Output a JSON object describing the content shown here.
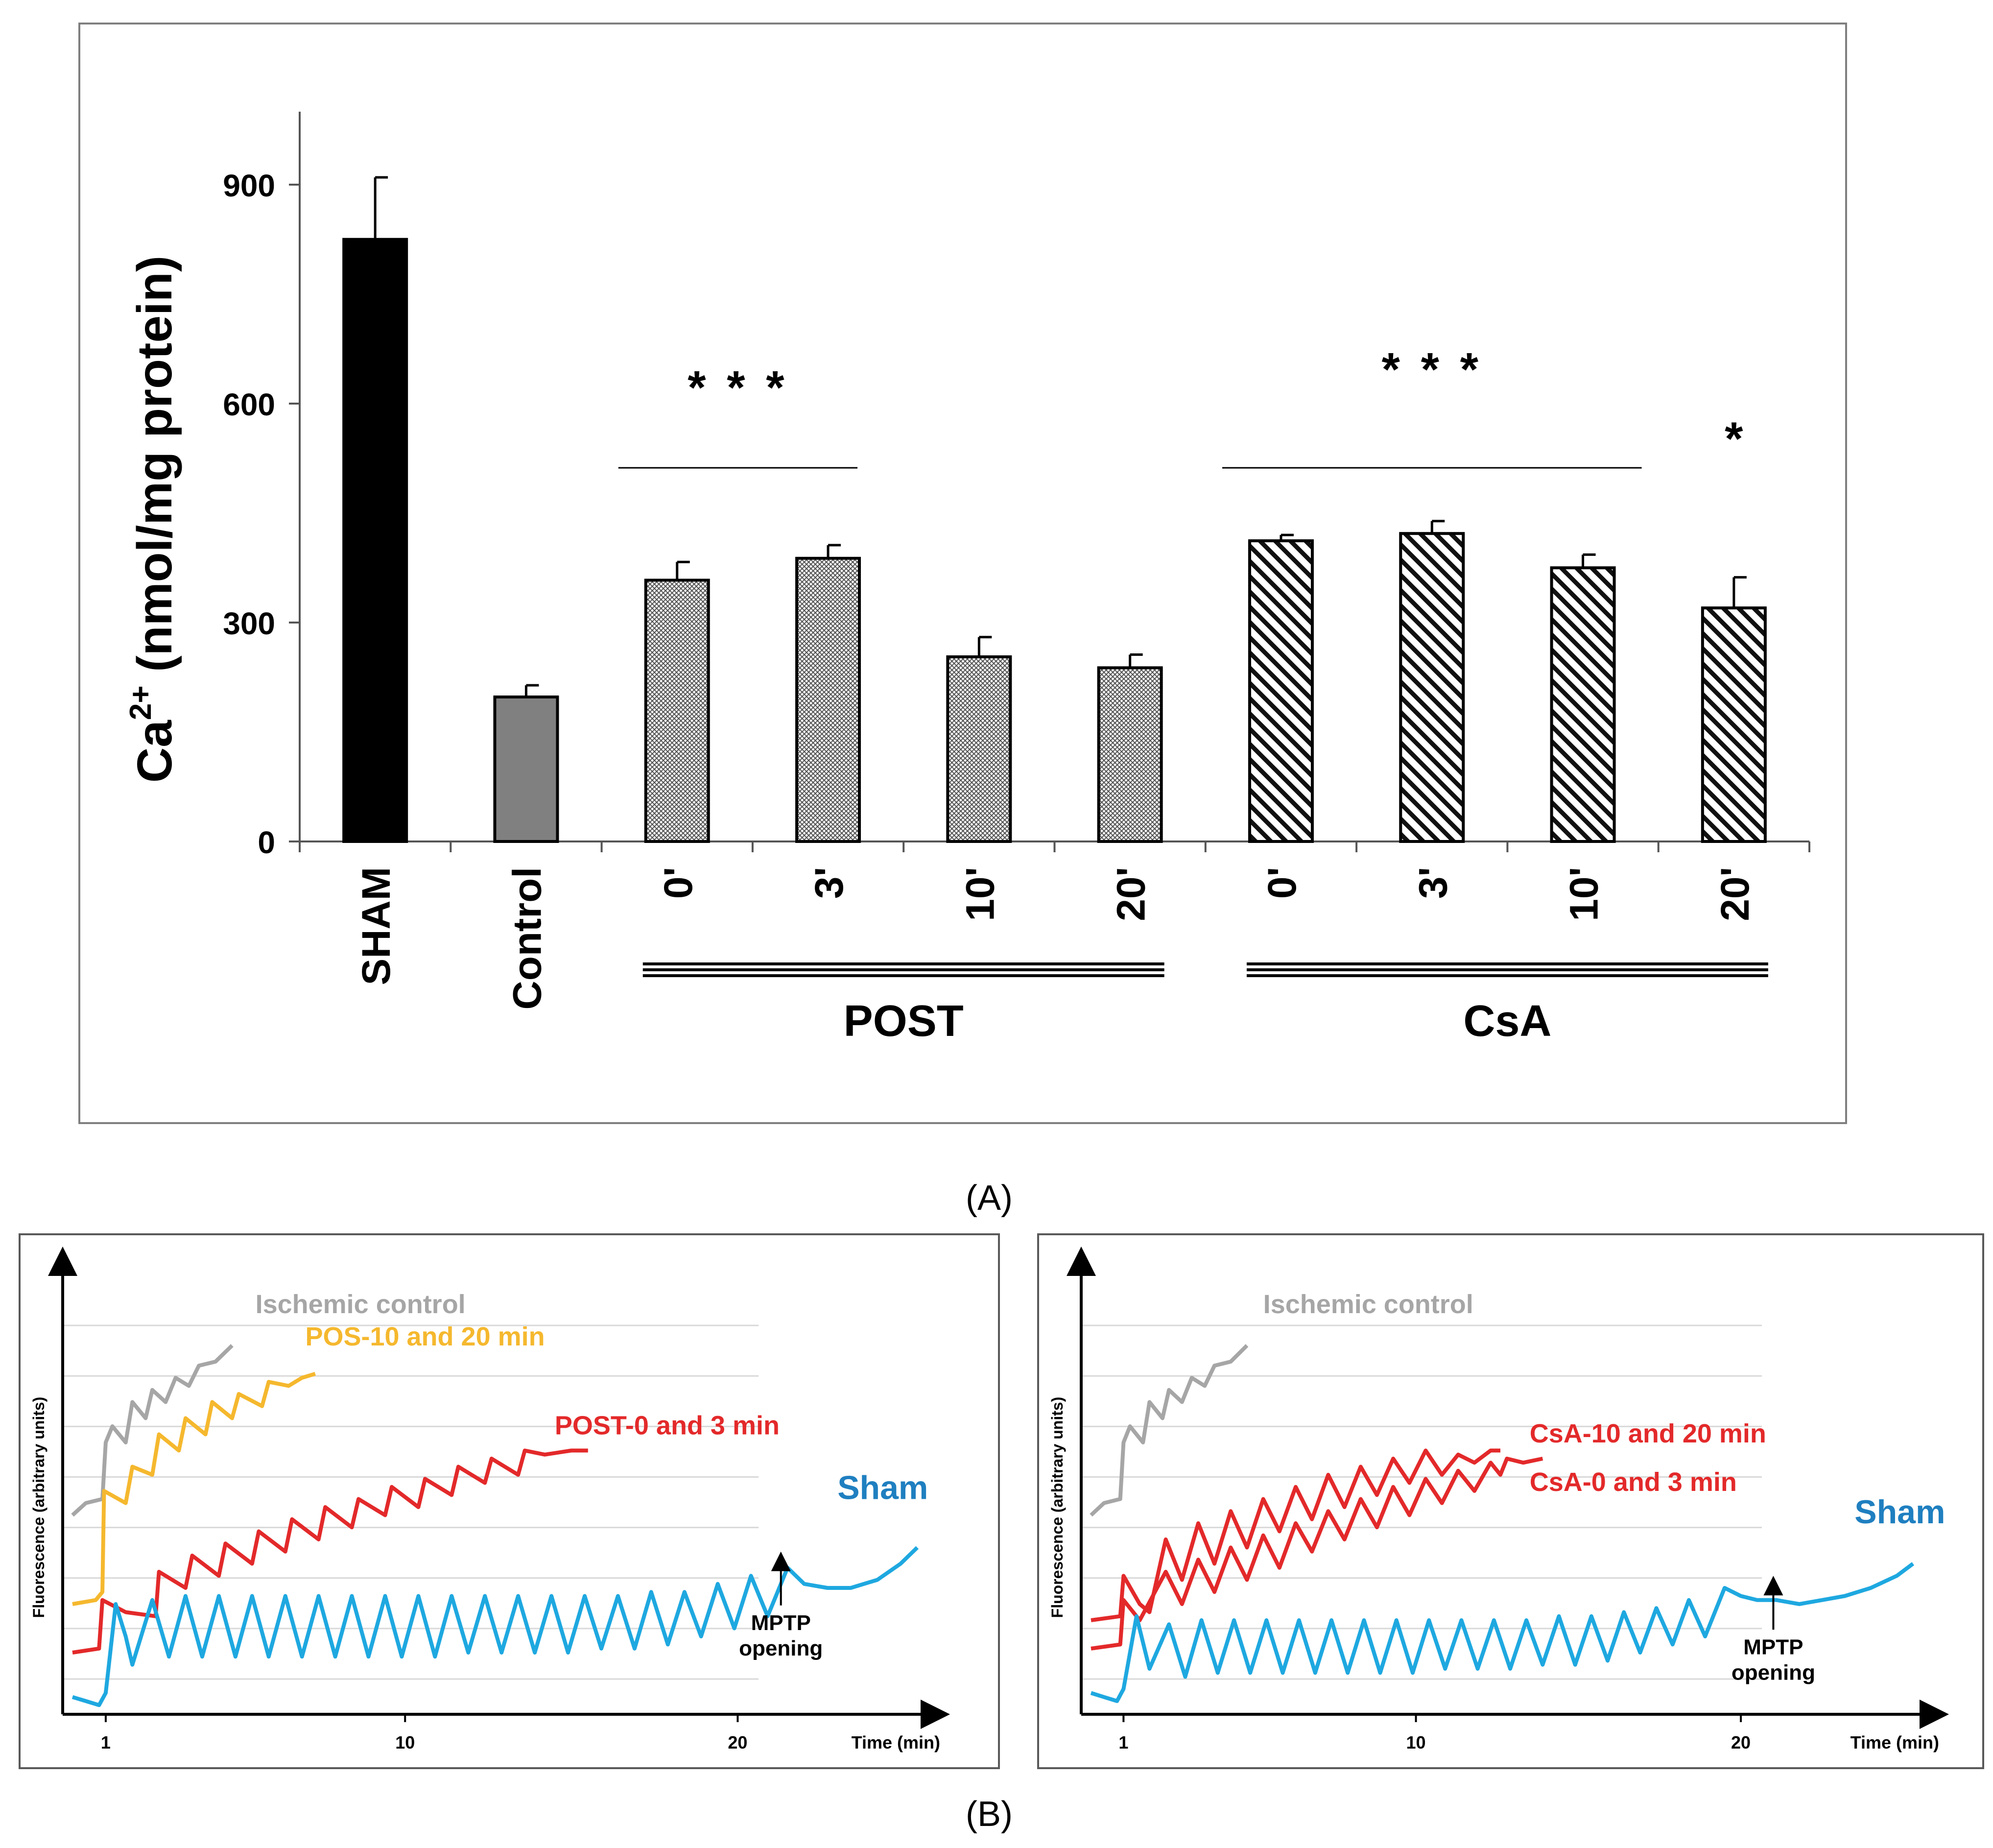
{
  "chart_data": [
    {
      "panel": "A",
      "type": "bar",
      "ylabel_main": "Ca",
      "ylabel_sup": "2+",
      "ylabel_rest": " (nmol/mg protein)",
      "ylim": [
        0,
        1000
      ],
      "yticks": [
        0,
        300,
        600,
        900
      ],
      "categories": [
        "SHAM",
        "Control",
        "0'",
        "3'",
        "10'",
        "20'",
        "0'",
        "3'",
        "10'",
        "20'"
      ],
      "values": [
        825,
        198,
        358,
        388,
        253,
        238,
        412,
        422,
        375,
        320
      ],
      "errors": [
        85,
        16,
        25,
        18,
        27,
        18,
        8,
        17,
        18,
        42
      ],
      "fills": [
        "solid-black",
        "solid-gray",
        "crosshatch",
        "crosshatch",
        "crosshatch",
        "crosshatch",
        "diagonal",
        "diagonal",
        "diagonal",
        "diagonal"
      ],
      "groups": [
        {
          "label": "POST",
          "from": 2,
          "to": 5
        },
        {
          "label": "CsA",
          "from": 6,
          "to": 9
        }
      ],
      "significance": [
        {
          "text": "* * *",
          "from": 2,
          "to": 3,
          "y": 600,
          "line_y": 512
        },
        {
          "text": "* * *",
          "from": 6,
          "to": 8,
          "y": 625,
          "line_y": 512
        },
        {
          "text": "*",
          "at": 9,
          "y": 530
        }
      ],
      "caption": "(A)"
    },
    {
      "panel": "B-left",
      "type": "line",
      "ylabel": "Fluorescence (arbitrary units)",
      "xlabel": "Time (min)",
      "xticks": [
        1,
        10,
        20
      ],
      "xlim": [
        0,
        25.5
      ],
      "ylim": [
        0,
        100
      ],
      "annotation": {
        "line1": "MPTP",
        "line2": "opening",
        "x": 21.3,
        "y": 33
      },
      "series": [
        {
          "name": "Ischemic control",
          "color": "#a6a6a6",
          "label_x": 5.5,
          "label_y": 92,
          "points": [
            [
              0,
              42
            ],
            [
              0.4,
              45
            ],
            [
              0.9,
              46
            ],
            [
              1.0,
              60
            ],
            [
              1.2,
              64
            ],
            [
              1.6,
              60
            ],
            [
              1.8,
              70
            ],
            [
              2.2,
              66
            ],
            [
              2.4,
              73
            ],
            [
              2.8,
              70
            ],
            [
              3.1,
              76
            ],
            [
              3.5,
              74
            ],
            [
              3.8,
              79
            ],
            [
              4.3,
              80
            ],
            [
              4.8,
              84
            ]
          ]
        },
        {
          "name": "POS-10 and 20 min",
          "color": "#f5b82e",
          "label_x": 7.0,
          "label_y": 84,
          "points": [
            [
              0,
              20
            ],
            [
              0.7,
              21
            ],
            [
              0.9,
              23
            ],
            [
              0.95,
              48
            ],
            [
              1.6,
              45
            ],
            [
              1.8,
              54
            ],
            [
              2.4,
              52
            ],
            [
              2.6,
              62
            ],
            [
              3.2,
              58
            ],
            [
              3.4,
              66
            ],
            [
              4.0,
              62
            ],
            [
              4.2,
              70
            ],
            [
              4.8,
              66
            ],
            [
              5.0,
              72
            ],
            [
              5.7,
              69
            ],
            [
              5.9,
              75
            ],
            [
              6.5,
              74
            ],
            [
              6.9,
              76
            ],
            [
              7.3,
              77
            ]
          ]
        },
        {
          "name": "POST-0 and 3 min",
          "color": "#e3292a",
          "label_x": 14.5,
          "label_y": 62,
          "points": [
            [
              0,
              8
            ],
            [
              0.8,
              9
            ],
            [
              0.9,
              21
            ],
            [
              1.6,
              18
            ],
            [
              2.5,
              17
            ],
            [
              2.6,
              28
            ],
            [
              3.4,
              24
            ],
            [
              3.6,
              32
            ],
            [
              4.4,
              27
            ],
            [
              4.6,
              35
            ],
            [
              5.4,
              30
            ],
            [
              5.6,
              38
            ],
            [
              6.4,
              33
            ],
            [
              6.6,
              41
            ],
            [
              7.4,
              36
            ],
            [
              7.6,
              44
            ],
            [
              8.4,
              39
            ],
            [
              8.6,
              46
            ],
            [
              9.4,
              42
            ],
            [
              9.6,
              49
            ],
            [
              10.4,
              44
            ],
            [
              10.6,
              51
            ],
            [
              11.4,
              47
            ],
            [
              11.6,
              54
            ],
            [
              12.4,
              50
            ],
            [
              12.6,
              56
            ],
            [
              13.4,
              52
            ],
            [
              13.6,
              58
            ],
            [
              14.2,
              57
            ],
            [
              15.0,
              58
            ],
            [
              15.5,
              58
            ]
          ]
        },
        {
          "name": "Sham",
          "color": "#1ea8e0",
          "label_x": 23.0,
          "label_y": 46,
          "points": [
            [
              0,
              -3
            ],
            [
              0.4,
              -4
            ],
            [
              0.8,
              -5
            ],
            [
              1.0,
              -2
            ],
            [
              1.3,
              20
            ],
            [
              1.6,
              12
            ],
            [
              1.8,
              5
            ],
            [
              2.4,
              21
            ],
            [
              2.9,
              7
            ],
            [
              3.4,
              22
            ],
            [
              3.9,
              7
            ],
            [
              4.4,
              22
            ],
            [
              4.9,
              7
            ],
            [
              5.4,
              22
            ],
            [
              5.9,
              7
            ],
            [
              6.4,
              22
            ],
            [
              6.9,
              7
            ],
            [
              7.4,
              22
            ],
            [
              7.9,
              7
            ],
            [
              8.4,
              22
            ],
            [
              8.9,
              7
            ],
            [
              9.4,
              22
            ],
            [
              9.9,
              7
            ],
            [
              10.4,
              22
            ],
            [
              10.9,
              7
            ],
            [
              11.4,
              22
            ],
            [
              11.9,
              8
            ],
            [
              12.4,
              22
            ],
            [
              12.9,
              8
            ],
            [
              13.4,
              22
            ],
            [
              13.9,
              8
            ],
            [
              14.4,
              22
            ],
            [
              14.9,
              8
            ],
            [
              15.4,
              22
            ],
            [
              15.9,
              9
            ],
            [
              16.4,
              22
            ],
            [
              16.9,
              9
            ],
            [
              17.4,
              23
            ],
            [
              17.9,
              10
            ],
            [
              18.4,
              23
            ],
            [
              18.9,
              12
            ],
            [
              19.4,
              25
            ],
            [
              19.9,
              14
            ],
            [
              20.4,
              27
            ],
            [
              20.9,
              17
            ],
            [
              21.5,
              29
            ],
            [
              22.0,
              25
            ],
            [
              22.7,
              24
            ],
            [
              23.4,
              24
            ],
            [
              24.2,
              26
            ],
            [
              24.9,
              30
            ],
            [
              25.4,
              34
            ]
          ]
        }
      ]
    },
    {
      "panel": "B-right",
      "type": "line",
      "ylabel": "Fluorescence (arbitrary units)",
      "xlabel": "Time (min)",
      "xticks": [
        1,
        10,
        20
      ],
      "xlim": [
        0,
        25.5
      ],
      "ylim": [
        0,
        100
      ],
      "annotation": {
        "line1": "MPTP",
        "line2": "opening",
        "x": 21.0,
        "y": 27
      },
      "series": [
        {
          "name": "Ischemic control",
          "color": "#a6a6a6",
          "label_x": 5.3,
          "label_y": 92,
          "points": [
            [
              0,
              42
            ],
            [
              0.4,
              45
            ],
            [
              0.9,
              46
            ],
            [
              1.0,
              60
            ],
            [
              1.2,
              64
            ],
            [
              1.6,
              60
            ],
            [
              1.8,
              70
            ],
            [
              2.2,
              66
            ],
            [
              2.4,
              73
            ],
            [
              2.8,
              70
            ],
            [
              3.1,
              76
            ],
            [
              3.5,
              74
            ],
            [
              3.8,
              79
            ],
            [
              4.3,
              80
            ],
            [
              4.8,
              84
            ]
          ]
        },
        {
          "name": "CsA-10 and 20 min",
          "color": "#e3292a",
          "label_x": 13.5,
          "label_y": 60,
          "points": [
            [
              0,
              16
            ],
            [
              0.9,
              17
            ],
            [
              1.0,
              27
            ],
            [
              1.5,
              20
            ],
            [
              1.8,
              18
            ],
            [
              2.3,
              36
            ],
            [
              2.8,
              26
            ],
            [
              3.3,
              40
            ],
            [
              3.8,
              30
            ],
            [
              4.3,
              43
            ],
            [
              4.8,
              34
            ],
            [
              5.3,
              46
            ],
            [
              5.8,
              38
            ],
            [
              6.3,
              49
            ],
            [
              6.8,
              41
            ],
            [
              7.3,
              52
            ],
            [
              7.8,
              44
            ],
            [
              8.3,
              54
            ],
            [
              8.8,
              47
            ],
            [
              9.3,
              56
            ],
            [
              9.8,
              50
            ],
            [
              10.3,
              58
            ],
            [
              10.8,
              52
            ],
            [
              11.3,
              57
            ],
            [
              11.8,
              55
            ],
            [
              12.3,
              58
            ],
            [
              12.6,
              58
            ]
          ]
        },
        {
          "name": "CsA-0 and 3 min",
          "color": "#e3292a",
          "label_x": 13.5,
          "label_y": 48,
          "points": [
            [
              0,
              9
            ],
            [
              0.9,
              10
            ],
            [
              1.0,
              21
            ],
            [
              1.5,
              16
            ],
            [
              2.3,
              28
            ],
            [
              2.8,
              20
            ],
            [
              3.3,
              31
            ],
            [
              3.8,
              23
            ],
            [
              4.3,
              34
            ],
            [
              4.8,
              26
            ],
            [
              5.3,
              37
            ],
            [
              5.8,
              29
            ],
            [
              6.3,
              40
            ],
            [
              6.8,
              33
            ],
            [
              7.3,
              43
            ],
            [
              7.8,
              36
            ],
            [
              8.3,
              46
            ],
            [
              8.8,
              39
            ],
            [
              9.3,
              49
            ],
            [
              9.8,
              42
            ],
            [
              10.3,
              51
            ],
            [
              10.8,
              45
            ],
            [
              11.3,
              53
            ],
            [
              11.8,
              48
            ],
            [
              12.3,
              55
            ],
            [
              12.6,
              52
            ],
            [
              12.8,
              56
            ],
            [
              13.3,
              55
            ],
            [
              13.9,
              56
            ]
          ]
        },
        {
          "name": "Sham",
          "color": "#1ea8e0",
          "label_x": 23.5,
          "label_y": 40,
          "points": [
            [
              0,
              -2
            ],
            [
              0.4,
              -3
            ],
            [
              0.8,
              -4
            ],
            [
              1.0,
              -1
            ],
            [
              1.4,
              17
            ],
            [
              1.8,
              4
            ],
            [
              2.4,
              15
            ],
            [
              2.9,
              2
            ],
            [
              3.4,
              16
            ],
            [
              3.9,
              3
            ],
            [
              4.4,
              16
            ],
            [
              4.9,
              3
            ],
            [
              5.4,
              16
            ],
            [
              5.9,
              3
            ],
            [
              6.4,
              16
            ],
            [
              6.9,
              3
            ],
            [
              7.4,
              16
            ],
            [
              7.9,
              3
            ],
            [
              8.4,
              16
            ],
            [
              8.9,
              3
            ],
            [
              9.4,
              16
            ],
            [
              9.9,
              3
            ],
            [
              10.4,
              16
            ],
            [
              10.9,
              4
            ],
            [
              11.4,
              16
            ],
            [
              11.9,
              4
            ],
            [
              12.4,
              16
            ],
            [
              12.9,
              4
            ],
            [
              13.4,
              16
            ],
            [
              13.9,
              5
            ],
            [
              14.4,
              17
            ],
            [
              14.9,
              5
            ],
            [
              15.4,
              17
            ],
            [
              15.9,
              6
            ],
            [
              16.4,
              18
            ],
            [
              16.9,
              8
            ],
            [
              17.4,
              19
            ],
            [
              17.9,
              10
            ],
            [
              18.4,
              21
            ],
            [
              18.9,
              12
            ],
            [
              19.5,
              24
            ],
            [
              20.0,
              22
            ],
            [
              20.5,
              21
            ],
            [
              21.1,
              21
            ],
            [
              21.8,
              20
            ],
            [
              22.5,
              21
            ],
            [
              23.2,
              22
            ],
            [
              24.0,
              24
            ],
            [
              24.8,
              27
            ],
            [
              25.3,
              30
            ]
          ]
        }
      ],
      "caption": "(B)"
    }
  ]
}
